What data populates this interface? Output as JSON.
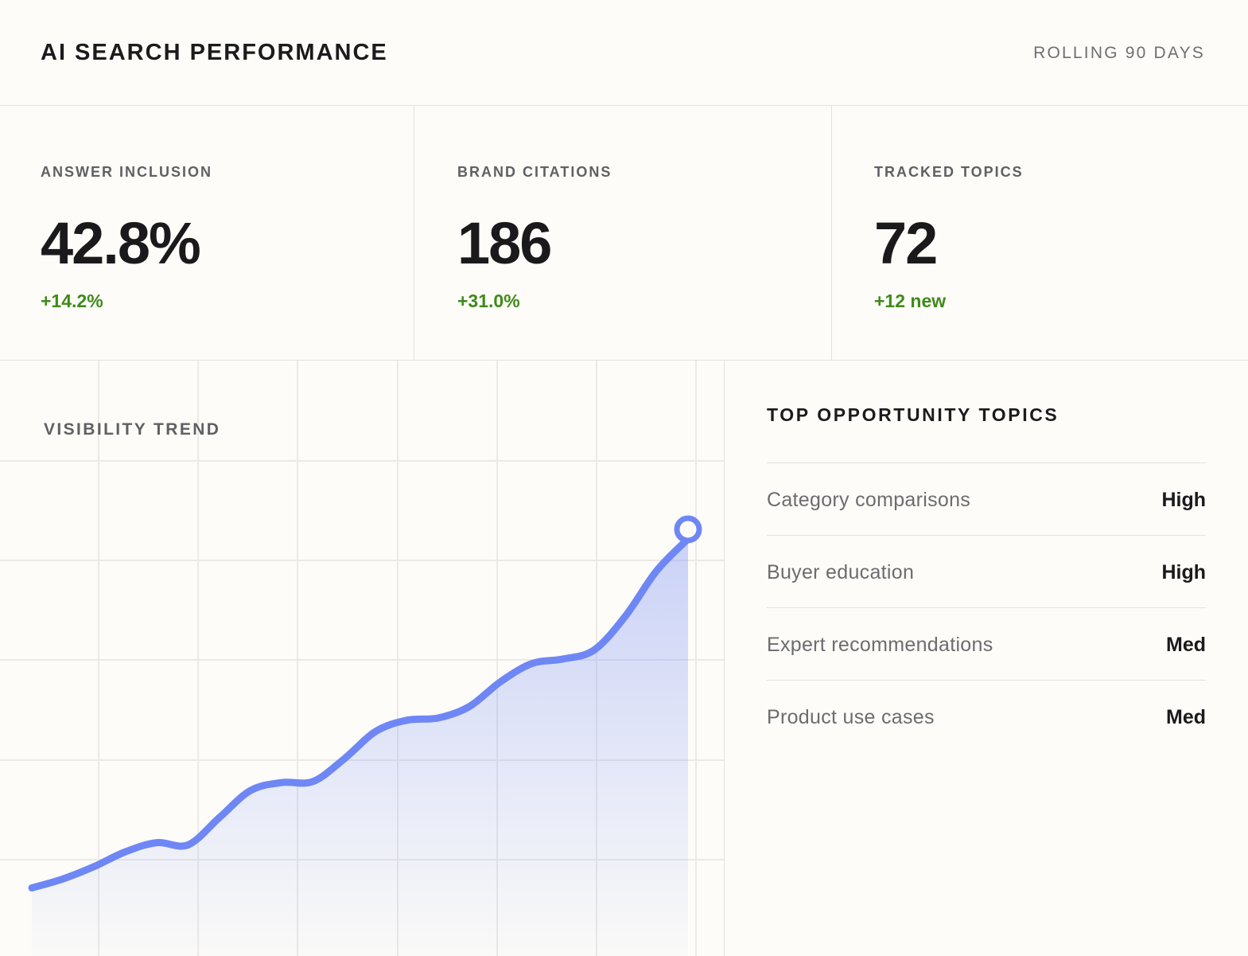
{
  "header": {
    "title": "AI SEARCH PERFORMANCE",
    "range_label": "ROLLING 90 DAYS"
  },
  "kpis": [
    {
      "label": "ANSWER INCLUSION",
      "value": "42.8%",
      "delta": "+14.2%"
    },
    {
      "label": "BRAND CITATIONS",
      "value": "186",
      "delta": "+31.0%"
    },
    {
      "label": "TRACKED TOPICS",
      "value": "72",
      "delta": "+12 new"
    }
  ],
  "trend": {
    "title": "VISIBILITY TREND"
  },
  "opportunities": {
    "title": "TOP OPPORTUNITY TOPICS",
    "items": [
      {
        "topic": "Category comparisons",
        "level": "High"
      },
      {
        "topic": "Buyer education",
        "level": "High"
      },
      {
        "topic": "Expert recommendations",
        "level": "Med"
      },
      {
        "topic": "Product use cases",
        "level": "Med"
      }
    ]
  },
  "colors": {
    "accent": "#6f87f5",
    "positive": "#3f8a1b"
  },
  "chart_data": {
    "type": "area",
    "title": "VISIBILITY TREND",
    "x": [
      0,
      1,
      2,
      3,
      4,
      5,
      6,
      7,
      8,
      9,
      10,
      11,
      12,
      13,
      14,
      15,
      16,
      17,
      18,
      19,
      20,
      21
    ],
    "series": [
      {
        "values": [
          1.0,
          1.4,
          1.95,
          2.6,
          3.0,
          2.9,
          4.1,
          5.3,
          5.65,
          5.7,
          6.7,
          7.9,
          8.4,
          8.5,
          9.0,
          10.1,
          10.9,
          11.1,
          11.5,
          13.0,
          15.0,
          16.4
        ]
      }
    ],
    "ylim": [
      0,
      21
    ],
    "grid": true,
    "show_axes": false,
    "end_marker": true
  }
}
